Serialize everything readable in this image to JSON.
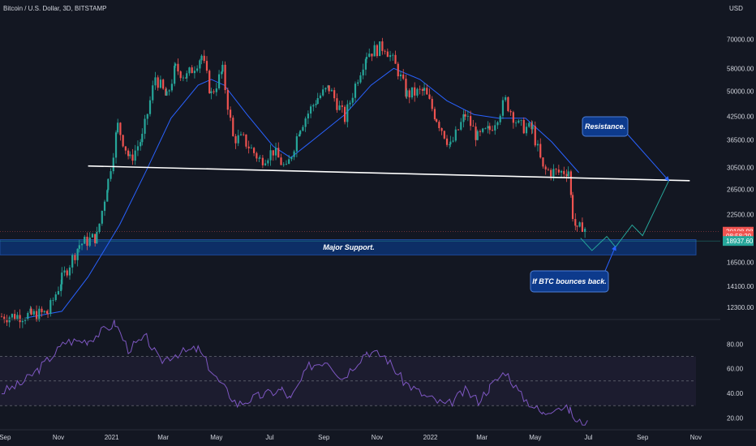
{
  "header": {
    "title": "Bitcoin / U.S. Dollar, 3D, BITSTAMP",
    "currency": "USD"
  },
  "colors": {
    "background": "#131722",
    "up": "#26a69a",
    "down": "#ef5350",
    "ma": "#2962ff",
    "rsi": "#7e57c2",
    "support_zone": "#0d2e66",
    "annotation_fill": "#0d3a8c",
    "projection": "#26a69a",
    "resistance_arrow": "#2962ff"
  },
  "chart_data": [
    {
      "type": "candlestick",
      "title": "Bitcoin / U.S. Dollar, 3D, BITSTAMP",
      "scale": "log",
      "ylim": [
        11500,
        78000
      ],
      "price_ticks": [
        "70000.00",
        "58000.00",
        "50000.00",
        "42500.00",
        "36500.00",
        "30500.00",
        "26500.00",
        "22500.00",
        "16500.00",
        "14100.00",
        "12300.00"
      ],
      "x_ticks": [
        "Sep",
        "Nov",
        "2021",
        "Mar",
        "May",
        "Jul",
        "Sep",
        "Nov",
        "2022",
        "Mar",
        "May",
        "Jul",
        "Sep",
        "Nov"
      ],
      "price_tags": [
        {
          "label": "20108.98",
          "value": 20108.98,
          "color": "#ef5350"
        },
        {
          "label": "08:58:29",
          "value": 19550,
          "color": "#ef5350"
        },
        {
          "label": "18937.60",
          "value": 18937.6,
          "color": "#26a69a"
        }
      ],
      "series": [
        {
          "name": "price",
          "path_points": [
            {
              "t": "2020-08-28",
              "v": 11600
            },
            {
              "t": "2020-10-01",
              "v": 11700
            },
            {
              "t": "2020-10-20",
              "v": 11900
            },
            {
              "t": "2020-11-05",
              "v": 14800
            },
            {
              "t": "2020-11-25",
              "v": 18500
            },
            {
              "t": "2020-12-15",
              "v": 19500
            },
            {
              "t": "2020-12-28",
              "v": 28000
            },
            {
              "t": "2021-01-08",
              "v": 40000
            },
            {
              "t": "2021-01-22",
              "v": 32000
            },
            {
              "t": "2021-02-05",
              "v": 37000
            },
            {
              "t": "2021-02-20",
              "v": 55000
            },
            {
              "t": "2021-03-05",
              "v": 48000
            },
            {
              "t": "2021-03-15",
              "v": 58000
            },
            {
              "t": "2021-03-28",
              "v": 55000
            },
            {
              "t": "2021-04-14",
              "v": 63000
            },
            {
              "t": "2021-04-25",
              "v": 49000
            },
            {
              "t": "2021-05-08",
              "v": 57000
            },
            {
              "t": "2021-05-20",
              "v": 37000
            },
            {
              "t": "2021-06-01",
              "v": 36500
            },
            {
              "t": "2021-06-20",
              "v": 32000
            },
            {
              "t": "2021-07-05",
              "v": 34000
            },
            {
              "t": "2021-07-20",
              "v": 30000
            },
            {
              "t": "2021-08-05",
              "v": 40000
            },
            {
              "t": "2021-08-25",
              "v": 48000
            },
            {
              "t": "2021-09-07",
              "v": 51000
            },
            {
              "t": "2021-09-25",
              "v": 42000
            },
            {
              "t": "2021-10-10",
              "v": 55000
            },
            {
              "t": "2021-10-20",
              "v": 64000
            },
            {
              "t": "2021-11-10",
              "v": 67000
            },
            {
              "t": "2021-11-25",
              "v": 57000
            },
            {
              "t": "2021-12-05",
              "v": 49000
            },
            {
              "t": "2021-12-25",
              "v": 50000
            },
            {
              "t": "2022-01-08",
              "v": 42000
            },
            {
              "t": "2022-01-24",
              "v": 35000
            },
            {
              "t": "2022-02-10",
              "v": 43000
            },
            {
              "t": "2022-02-24",
              "v": 37000
            },
            {
              "t": "2022-03-10",
              "v": 39000
            },
            {
              "t": "2022-03-28",
              "v": 47000
            },
            {
              "t": "2022-04-12",
              "v": 40000
            },
            {
              "t": "2022-04-28",
              "v": 39000
            },
            {
              "t": "2022-05-10",
              "v": 30000
            },
            {
              "t": "2022-05-28",
              "v": 29500
            },
            {
              "t": "2022-06-08",
              "v": 30000
            },
            {
              "t": "2022-06-13",
              "v": 22500
            },
            {
              "t": "2022-06-18",
              "v": 20000
            },
            {
              "t": "2022-06-24",
              "v": 21000
            },
            {
              "t": "2022-06-30",
              "v": 20108.98
            }
          ]
        },
        {
          "name": "moving_average",
          "points": [
            {
              "t": "2020-09-25",
              "v": 11500
            },
            {
              "t": "2020-11-05",
              "v": 12000
            },
            {
              "t": "2020-12-05",
              "v": 15000
            },
            {
              "t": "2021-01-10",
              "v": 21000
            },
            {
              "t": "2021-02-10",
              "v": 30000
            },
            {
              "t": "2021-03-10",
              "v": 42000
            },
            {
              "t": "2021-04-10",
              "v": 52000
            },
            {
              "t": "2021-04-25",
              "v": 54000
            },
            {
              "t": "2021-05-10",
              "v": 52000
            },
            {
              "t": "2021-06-05",
              "v": 43000
            },
            {
              "t": "2021-07-05",
              "v": 35000
            },
            {
              "t": "2021-07-25",
              "v": 32500
            },
            {
              "t": "2021-08-20",
              "v": 36500
            },
            {
              "t": "2021-09-25",
              "v": 43000
            },
            {
              "t": "2021-10-25",
              "v": 52000
            },
            {
              "t": "2021-11-20",
              "v": 58000
            },
            {
              "t": "2021-12-20",
              "v": 54000
            },
            {
              "t": "2022-01-20",
              "v": 47000
            },
            {
              "t": "2022-02-20",
              "v": 43000
            },
            {
              "t": "2022-03-20",
              "v": 42000
            },
            {
              "t": "2022-04-20",
              "v": 42000
            },
            {
              "t": "2022-05-20",
              "v": 36000
            },
            {
              "t": "2022-06-20",
              "v": 29500
            }
          ]
        },
        {
          "name": "projection",
          "points": [
            {
              "t": "2022-06-22",
              "v": 19300
            },
            {
              "t": "2022-07-05",
              "v": 17800
            },
            {
              "t": "2022-07-22",
              "v": 19500
            },
            {
              "t": "2022-08-01",
              "v": 18200
            },
            {
              "t": "2022-08-20",
              "v": 21000
            },
            {
              "t": "2022-09-01",
              "v": 19600
            },
            {
              "t": "2022-10-01",
              "v": 28000
            }
          ]
        }
      ],
      "trendline": [
        {
          "t": "2020-12-05",
          "v": 30800
        },
        {
          "t": "2022-10-25",
          "v": 28000
        }
      ],
      "support_zone": {
        "top": 19100,
        "bottom": 17300,
        "label": "Major Support."
      },
      "current_price_line": 20108.98,
      "annotations": [
        {
          "label": "Resistance.",
          "target": {
            "t": "2022-10-01",
            "v": 28000
          }
        },
        {
          "label": "If BTC bounces back.",
          "target": {
            "t": "2022-08-01",
            "v": 18300
          }
        }
      ]
    },
    {
      "type": "line",
      "name": "RSI",
      "ylim": [
        13,
        100
      ],
      "y_ticks": [
        "80.00",
        "60.00",
        "40.00",
        "20.00"
      ],
      "band": [
        30,
        70
      ],
      "midline": 50,
      "values": [
        {
          "t": "2020-08-28",
          "v": 41
        },
        {
          "t": "2020-09-20",
          "v": 48
        },
        {
          "t": "2020-10-10",
          "v": 60
        },
        {
          "t": "2020-11-10",
          "v": 82
        },
        {
          "t": "2020-12-05",
          "v": 83
        },
        {
          "t": "2021-01-05",
          "v": 97
        },
        {
          "t": "2021-01-20",
          "v": 76
        },
        {
          "t": "2021-02-10",
          "v": 85
        },
        {
          "t": "2021-02-25",
          "v": 66
        },
        {
          "t": "2021-03-15",
          "v": 72
        },
        {
          "t": "2021-04-10",
          "v": 76
        },
        {
          "t": "2021-05-01",
          "v": 52
        },
        {
          "t": "2021-05-25",
          "v": 31
        },
        {
          "t": "2021-06-20",
          "v": 38
        },
        {
          "t": "2021-07-15",
          "v": 43
        },
        {
          "t": "2021-07-25",
          "v": 35
        },
        {
          "t": "2021-08-15",
          "v": 62
        },
        {
          "t": "2021-09-05",
          "v": 67
        },
        {
          "t": "2021-09-22",
          "v": 52
        },
        {
          "t": "2021-10-20",
          "v": 74
        },
        {
          "t": "2021-11-10",
          "v": 70
        },
        {
          "t": "2021-12-01",
          "v": 50
        },
        {
          "t": "2021-12-25",
          "v": 38
        },
        {
          "t": "2022-01-20",
          "v": 30
        },
        {
          "t": "2022-02-10",
          "v": 42
        },
        {
          "t": "2022-02-25",
          "v": 34
        },
        {
          "t": "2022-03-10",
          "v": 45
        },
        {
          "t": "2022-03-28",
          "v": 58
        },
        {
          "t": "2022-04-15",
          "v": 38
        },
        {
          "t": "2022-05-10",
          "v": 23
        },
        {
          "t": "2022-05-25",
          "v": 30
        },
        {
          "t": "2022-06-10",
          "v": 26
        },
        {
          "t": "2022-06-18",
          "v": 16
        },
        {
          "t": "2022-06-30",
          "v": 18
        }
      ]
    }
  ]
}
